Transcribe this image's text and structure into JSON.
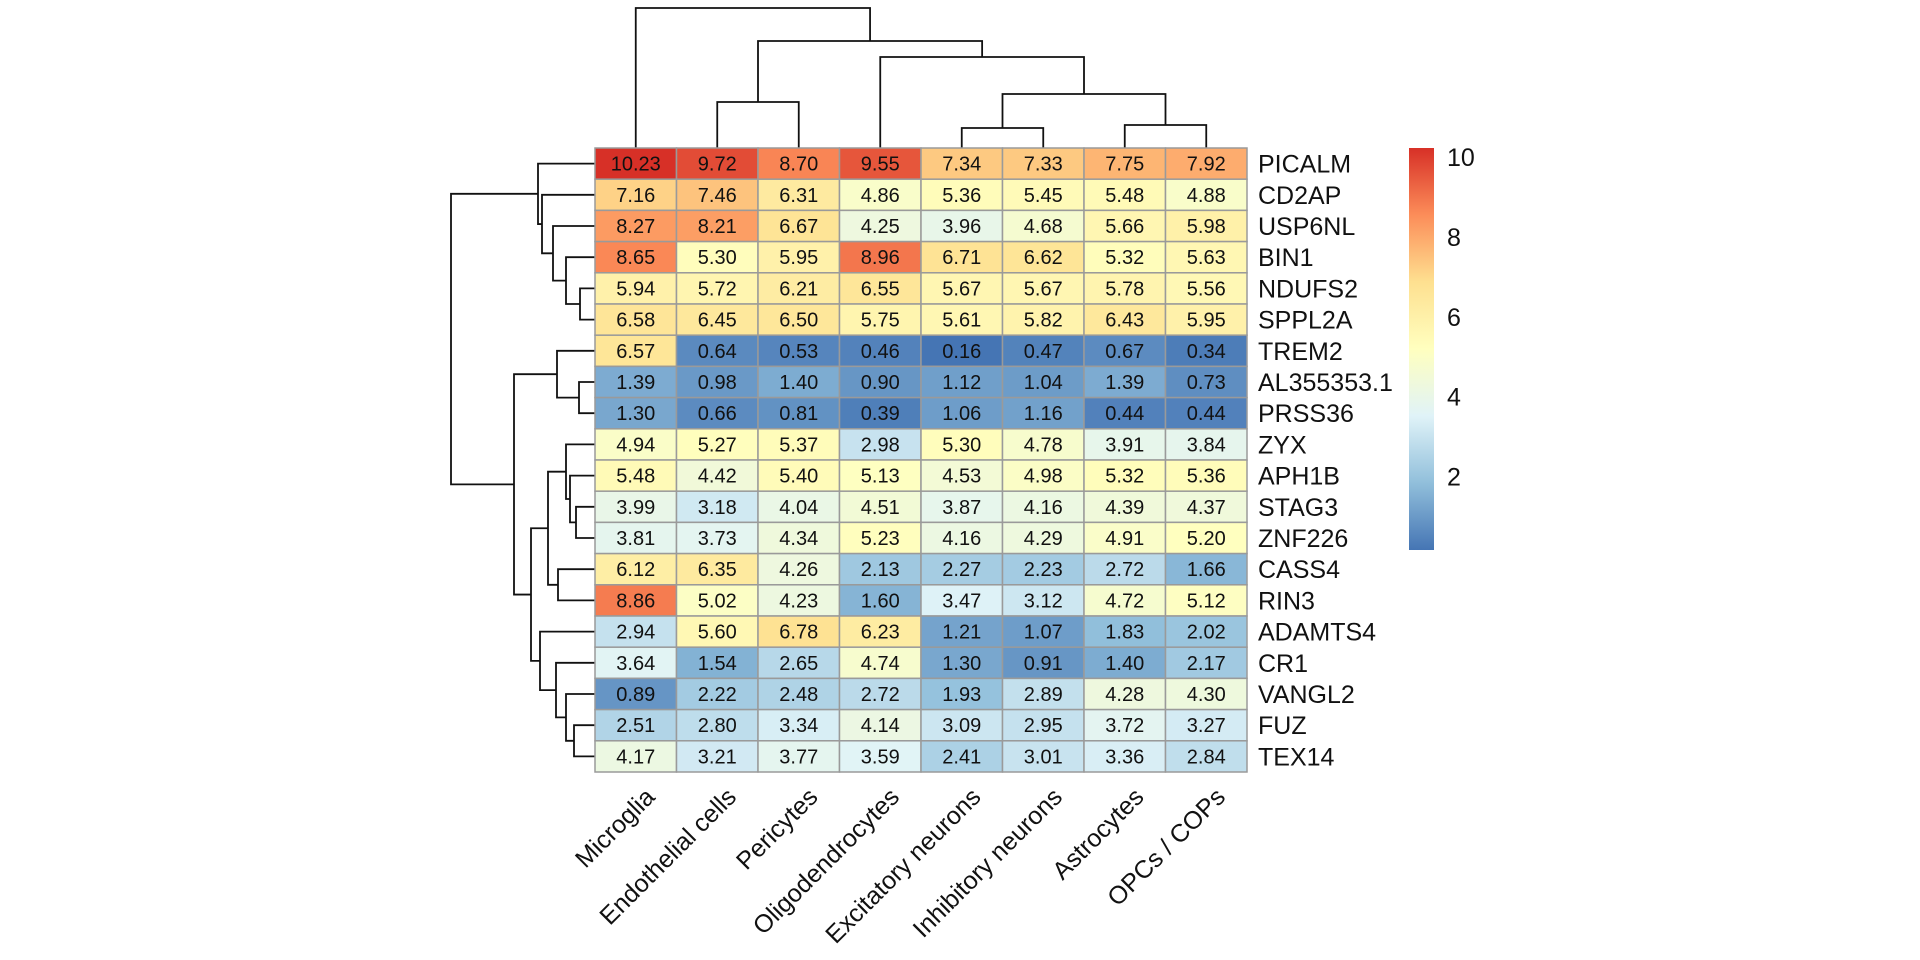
{
  "chart_data": {
    "type": "heatmap",
    "title": "",
    "columns": [
      "Microglia",
      "Endothelial cells",
      "Pericytes",
      "Oligodendrocytes",
      "Excitatory neurons",
      "Inhibitory neurons",
      "Astrocytes",
      "OPCs / COPs"
    ],
    "rows": [
      "PICALM",
      "CD2AP",
      "USP6NL",
      "BIN1",
      "NDUFS2",
      "SPPL2A",
      "TREM2",
      "AL355353.1",
      "PRSS36",
      "ZYX",
      "APH1B",
      "STAG3",
      "ZNF226",
      "CASS4",
      "RIN3",
      "ADAMTS4",
      "CR1",
      "VANGL2",
      "FUZ",
      "TEX14"
    ],
    "values": [
      [
        10.23,
        9.72,
        8.7,
        9.55,
        7.34,
        7.33,
        7.75,
        7.92
      ],
      [
        7.16,
        7.46,
        6.31,
        4.86,
        5.36,
        5.45,
        5.48,
        4.88
      ],
      [
        8.27,
        8.21,
        6.67,
        4.25,
        3.96,
        4.68,
        5.66,
        5.98
      ],
      [
        8.65,
        5.3,
        5.95,
        8.96,
        6.71,
        6.62,
        5.32,
        5.63
      ],
      [
        5.94,
        5.72,
        6.21,
        6.55,
        5.67,
        5.67,
        5.78,
        5.56
      ],
      [
        6.58,
        6.45,
        6.5,
        5.75,
        5.61,
        5.82,
        6.43,
        5.95
      ],
      [
        6.57,
        0.64,
        0.53,
        0.46,
        0.16,
        0.47,
        0.67,
        0.34
      ],
      [
        1.39,
        0.98,
        1.4,
        0.9,
        1.12,
        1.04,
        1.39,
        0.73
      ],
      [
        1.3,
        0.66,
        0.81,
        0.39,
        1.06,
        1.16,
        0.44,
        0.44
      ],
      [
        4.94,
        5.27,
        5.37,
        2.98,
        5.3,
        4.78,
        3.91,
        3.84
      ],
      [
        5.48,
        4.42,
        5.4,
        5.13,
        4.53,
        4.98,
        5.32,
        5.36
      ],
      [
        3.99,
        3.18,
        4.04,
        4.51,
        3.87,
        4.16,
        4.39,
        4.37
      ],
      [
        3.81,
        3.73,
        4.34,
        5.23,
        4.16,
        4.29,
        4.91,
        5.2
      ],
      [
        6.12,
        6.35,
        4.26,
        2.13,
        2.27,
        2.23,
        2.72,
        1.66
      ],
      [
        8.86,
        5.02,
        4.23,
        1.6,
        3.47,
        3.12,
        4.72,
        5.12
      ],
      [
        2.94,
        5.6,
        6.78,
        6.23,
        1.21,
        1.07,
        1.83,
        2.02
      ],
      [
        3.64,
        1.54,
        2.65,
        4.74,
        1.3,
        0.91,
        1.4,
        2.17
      ],
      [
        0.89,
        2.22,
        2.48,
        2.72,
        1.93,
        2.89,
        4.28,
        4.3
      ],
      [
        2.51,
        2.8,
        3.34,
        4.14,
        3.09,
        2.95,
        3.72,
        3.27
      ],
      [
        4.17,
        3.21,
        3.77,
        3.59,
        2.41,
        3.01,
        3.36,
        2.84
      ]
    ],
    "colorscale": {
      "min": 0.16,
      "max": 10.23,
      "stops": [
        "#4575B4",
        "#91BFDB",
        "#E0F3F8",
        "#FFFFBF",
        "#FEE090",
        "#FC8D59",
        "#D73027"
      ]
    },
    "legend": {
      "position": "right",
      "ticks": [
        "2",
        "4",
        "6",
        "8",
        "10"
      ]
    },
    "cell_border_color": "#9A9A9A",
    "dendrograms": {
      "rows": true,
      "columns": true
    }
  }
}
